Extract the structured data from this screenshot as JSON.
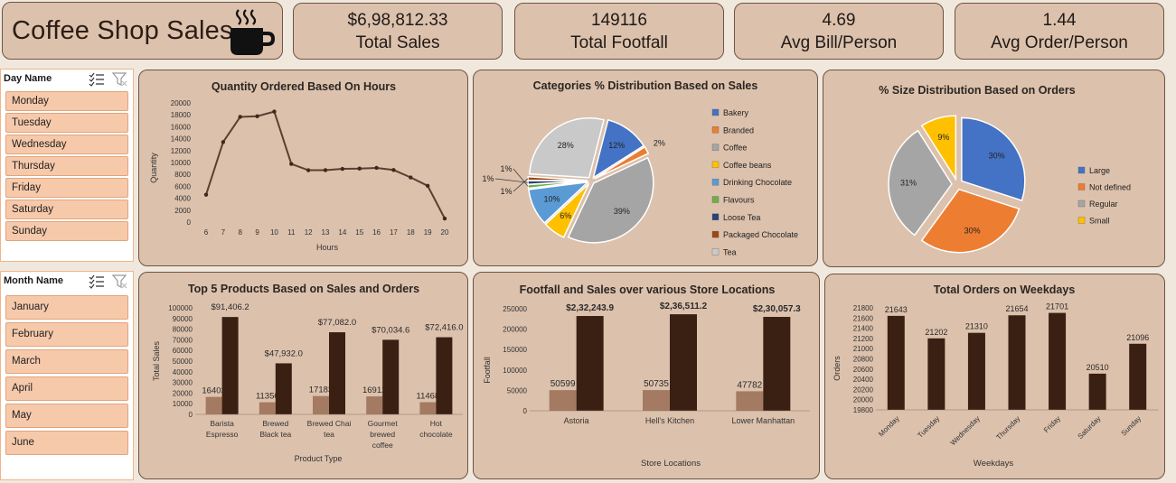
{
  "dashboard": {
    "title": "Coffee Shop Sales",
    "kpis": [
      {
        "value": "$6,98,812.33",
        "label": "Total Sales"
      },
      {
        "value": "149116",
        "label": "Total Footfall"
      },
      {
        "value": "4.69",
        "label": "Avg Bill/Person"
      },
      {
        "value": "1.44",
        "label": "Avg Order/Person"
      }
    ]
  },
  "slicers": {
    "day": {
      "header": "Day Name",
      "items": [
        "Monday",
        "Tuesday",
        "Wednesday",
        "Thursday",
        "Friday",
        "Saturday",
        "Sunday"
      ]
    },
    "month": {
      "header": "Month Name",
      "items": [
        "January",
        "February",
        "March",
        "April",
        "May",
        "June"
      ]
    }
  },
  "colors": {
    "card_bg": "#dcc1ac",
    "card_border": "#6d5444",
    "bar_dark": "#3a2013",
    "bar_light": "#a47a62",
    "line": "#5b4030",
    "slicer_item": "#f7c9ab"
  },
  "icons": [
    "coffee-cup-icon",
    "multi-select-icon",
    "clear-filter-icon"
  ],
  "chart_data": [
    {
      "id": "hours",
      "type": "line",
      "title": "Quantity Ordered Based On Hours",
      "xlabel": "Hours",
      "ylabel": "Quantity",
      "x": [
        6,
        7,
        8,
        9,
        10,
        11,
        12,
        13,
        14,
        15,
        16,
        17,
        18,
        19,
        20
      ],
      "y": [
        4594,
        13428,
        17654,
        17764,
        18545,
        9766,
        8708,
        8714,
        8933,
        8979,
        9093,
        8745,
        7498,
        6092,
        603
      ],
      "ylim": [
        0,
        20000
      ],
      "yticks": [
        0,
        2000,
        4000,
        6000,
        8000,
        10000,
        12000,
        14000,
        16000,
        18000,
        20000
      ]
    },
    {
      "id": "categories",
      "type": "pie",
      "title": "Categories % Distribution Based on Sales",
      "legend_position": "right",
      "slices": [
        {
          "name": "Bakery",
          "percent": 12,
          "label": "12%",
          "color": "#4472c4"
        },
        {
          "name": "Branded",
          "percent": 2,
          "label": "2%",
          "color": "#ed7d31"
        },
        {
          "name": "Coffee",
          "percent": 39,
          "label": "39%",
          "color": "#a5a5a5"
        },
        {
          "name": "Coffee beans",
          "percent": 6,
          "label": "6%",
          "color": "#ffc000"
        },
        {
          "name": "Drinking Chocolate",
          "percent": 10,
          "label": "10%",
          "color": "#5b9bd5"
        },
        {
          "name": "Flavours",
          "percent": 1,
          "label": "1%",
          "color": "#70ad47"
        },
        {
          "name": "Loose Tea",
          "percent": 1,
          "label": "1%",
          "color": "#264478"
        },
        {
          "name": "Packaged Chocolate",
          "percent": 1,
          "label": "1%",
          "color": "#9e480e"
        },
        {
          "name": "Tea",
          "percent": 28,
          "label": "28%",
          "color": "#c9c9c9"
        }
      ]
    },
    {
      "id": "sizes",
      "type": "pie",
      "title": "% Size Distribution Based on Orders",
      "legend_position": "right",
      "slices": [
        {
          "name": "Large",
          "percent": 30,
          "label": "30%",
          "color": "#4472c4"
        },
        {
          "name": "Not defined",
          "percent": 30,
          "label": "30%",
          "color": "#ed7d31"
        },
        {
          "name": "Regular",
          "percent": 31,
          "label": "31%",
          "color": "#a5a5a5"
        },
        {
          "name": "Small",
          "percent": 9,
          "label": "9%",
          "color": "#ffc000"
        }
      ]
    },
    {
      "id": "products",
      "type": "bar",
      "title": "Top 5 Products Based on Sales and Orders",
      "xlabel": "Product Type",
      "ylabel": "Total Sales",
      "categories": [
        "Barista Espresso",
        "Brewed Black tea",
        "Brewed Chai tea",
        "Gourmet brewed coffee",
        "Hot chocolate"
      ],
      "series": [
        {
          "values": [
            16403,
            11350,
            17183,
            16912,
            11468
          ],
          "labels": [
            "16403",
            "11350",
            "17183",
            "16912",
            "11468"
          ]
        },
        {
          "values": [
            91406.2,
            47932.0,
            77082.0,
            70034.6,
            72416.0
          ],
          "labels": [
            "$91,406.2",
            "$47,932.0",
            "$77,082.0",
            "$70,034.6",
            "$72,416.0"
          ]
        }
      ],
      "ylim": [
        0,
        100000
      ],
      "yticks": [
        0,
        10000,
        20000,
        30000,
        40000,
        50000,
        60000,
        70000,
        80000,
        90000,
        100000
      ]
    },
    {
      "id": "locations",
      "type": "bar",
      "title": "Footfall and Sales over various Store Locations",
      "xlabel": "Store Locations",
      "ylabel": "Footfall",
      "categories": [
        "Astoria",
        "Hell's Kitchen",
        "Lower Manhattan"
      ],
      "series": [
        {
          "values": [
            50599,
            50735,
            47782
          ],
          "labels": [
            "50599",
            "50735",
            "47782"
          ]
        },
        {
          "values": [
            232243.9,
            236511.2,
            230057.3
          ],
          "labels": [
            "$2,32,243.9",
            "$2,36,511.2",
            "$2,30,057.3"
          ]
        }
      ],
      "ylim": [
        0,
        250000
      ],
      "yticks": [
        0,
        50000,
        100000,
        150000,
        200000,
        250000
      ]
    },
    {
      "id": "weekdays",
      "type": "bar",
      "title": "Total Orders on Weekdays",
      "xlabel": "Weekdays",
      "ylabel": "Orders",
      "categories": [
        "Monday",
        "Tuesday",
        "Wednesday",
        "Thursday",
        "Friday",
        "Saturday",
        "Sunday"
      ],
      "values": [
        21643,
        21202,
        21310,
        21654,
        21701,
        20510,
        21096
      ],
      "labels": [
        "21643",
        "21202",
        "21310",
        "21654",
        "21701",
        "20510",
        "21096"
      ],
      "ylim": [
        19800,
        21800
      ],
      "yticks": [
        19800,
        20000,
        20200,
        20400,
        20600,
        20800,
        21000,
        21200,
        21400,
        21600,
        21800
      ]
    }
  ]
}
